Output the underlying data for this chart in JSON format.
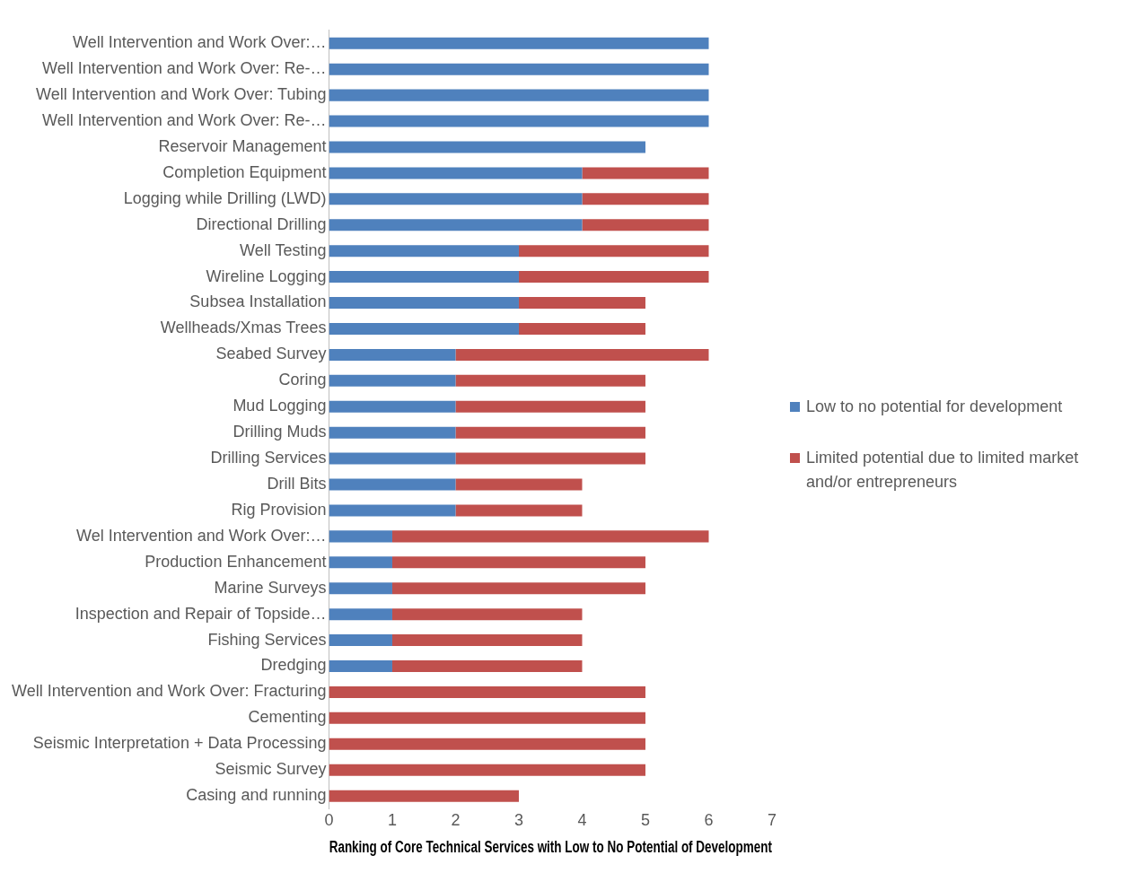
{
  "chart_data": {
    "type": "bar",
    "orientation": "horizontal",
    "stacked": true,
    "xlabel": "Ranking of Core Technical Services with Low to No Potential of Development",
    "categories": [
      "Well Intervention and Work Over:…",
      "Well Intervention and Work Over: Re-…",
      "Well Intervention and Work Over: Tubing",
      "Well Intervention and Work Over: Re-…",
      "Reservoir Management",
      "Completion Equipment",
      "Logging while Drilling (LWD)",
      "Directional Drilling",
      "Well Testing",
      "Wireline Logging",
      "Subsea Installation",
      "Wellheads/Xmas Trees",
      "Seabed Survey",
      "Coring",
      "Mud Logging",
      "Drilling Muds",
      "Drilling Services",
      "Drill Bits",
      "Rig Provision",
      "Wel Intervention and Work Over:…",
      "Production Enhancement",
      "Marine Surveys",
      "Inspection and Repair of Topside…",
      "Fishing Services",
      "Dredging",
      "Well Intervention and Work Over: Fracturing",
      "Cementing",
      "Seismic Interpretation + Data Processing",
      "Seismic Survey",
      "Casing and running"
    ],
    "series": [
      {
        "name": "Low to no potential for development",
        "color": "#4f81bd",
        "values": [
          6,
          6,
          6,
          6,
          5,
          4,
          4,
          4,
          3,
          3,
          3,
          3,
          2,
          2,
          2,
          2,
          2,
          2,
          2,
          1,
          1,
          1,
          1,
          1,
          1,
          0,
          0,
          0,
          0,
          0
        ]
      },
      {
        "name": "Limited potential due to limited market and/or entrepreneurs",
        "color": "#c0504d",
        "values": [
          0,
          0,
          0,
          0,
          0,
          2,
          2,
          2,
          3,
          3,
          2,
          2,
          4,
          3,
          3,
          3,
          3,
          2,
          2,
          5,
          4,
          4,
          3,
          3,
          3,
          5,
          5,
          5,
          5,
          3
        ]
      }
    ],
    "xlim": [
      0,
      7
    ],
    "xticks": [
      0,
      1,
      2,
      3,
      4,
      5,
      6,
      7
    ],
    "grid": false,
    "legend": "right"
  }
}
